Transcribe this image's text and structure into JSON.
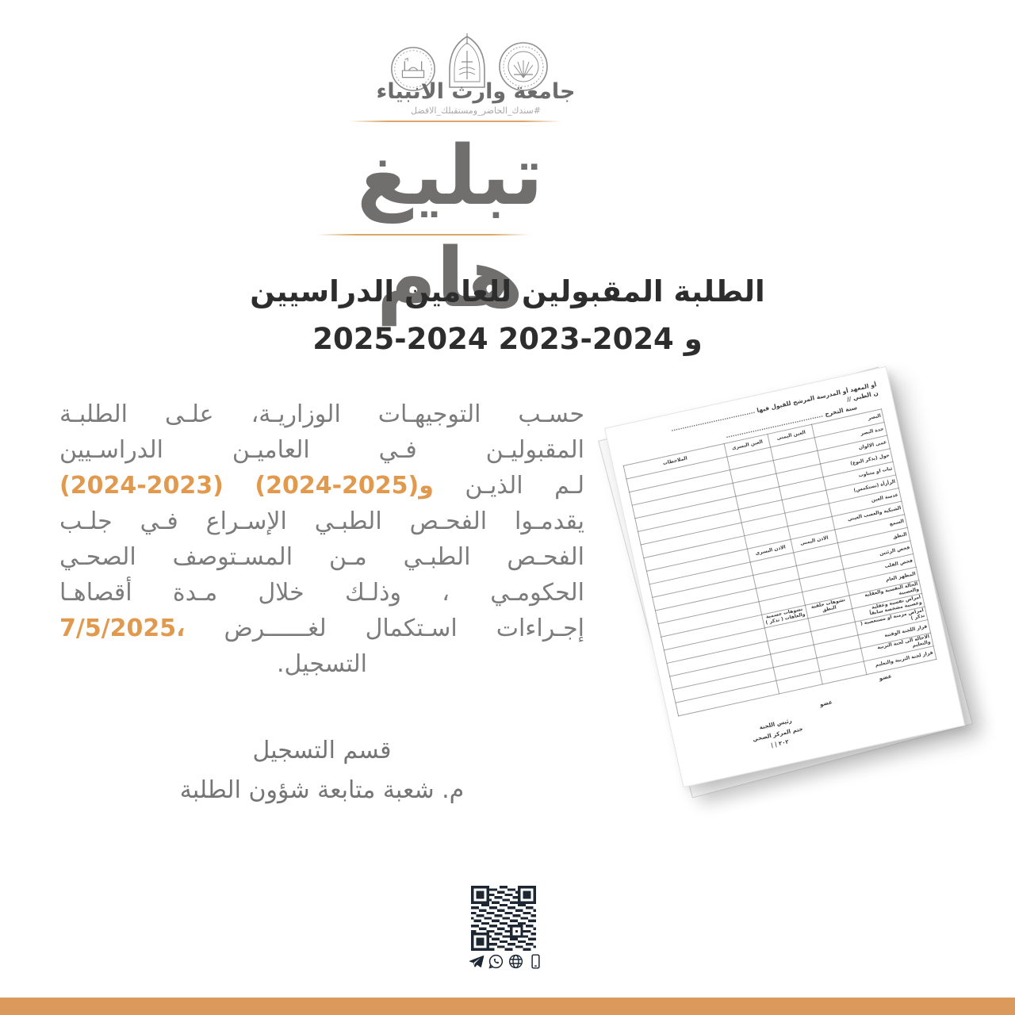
{
  "colors": {
    "accent_orange": "#E1994E",
    "footer_bar_orange": "#DB995C",
    "title_gray": "#706F6E",
    "subtitle_dark": "#2D2D2D",
    "body_gray": "#7C7C7C",
    "icon_navy": "#1C2733",
    "logo_gray": "#8E8E8E",
    "hairline_orange": "#DCA668"
  },
  "header": {
    "logos": [
      "shrine-emblem",
      "university-emblem",
      "ministry-seal"
    ],
    "university_name": "جامعة وارث الانبياء",
    "tagline": "#سندك_الحاضر_ومستقبلك_الافضل"
  },
  "notice": {
    "title": "تبليغ هام",
    "subtitle_line1": "الطلبة المقبولين للعامين الدراسيين",
    "subtitle_line2": "2025-2024 و 2024-2023",
    "body_lines": [
      {
        "type": "rtl",
        "segments": [
          {
            "text": "حسـب التوجيهـات الوزاريـة، علـى الطلبـة",
            "color": "body"
          }
        ]
      },
      {
        "type": "rtl",
        "segments": [
          {
            "text": "المقبوليـن فـي العاميـن الدراسـيين",
            "color": "body"
          }
        ]
      },
      {
        "type": "ltrflex",
        "segments": [
          {
            "text": "(2024-2023)",
            "color": "accent"
          },
          {
            "text": "و(2025-2024)",
            "color": "accent"
          },
          {
            "text": "الذيـن",
            "color": "body"
          },
          {
            "text": "لـم",
            "color": "body"
          }
        ]
      },
      {
        "type": "rtl",
        "segments": [
          {
            "text": "يقدمـوا الفحـص الطبـي الإسـراع فـي جلـب",
            "color": "body"
          }
        ]
      },
      {
        "type": "rtl",
        "segments": [
          {
            "text": "الفحـص الطبـي مـن المسـتوصف الصحـي",
            "color": "body"
          }
        ]
      },
      {
        "type": "rtl",
        "segments": [
          {
            "text": "الحكومـي ، وذلـك خلال مـدة أقصاهـا",
            "color": "body"
          }
        ]
      },
      {
        "type": "ltrflex",
        "segments": [
          {
            "text": "7/5/2025،",
            "color": "accent"
          },
          {
            "text": "لغــــــرض",
            "color": "body"
          },
          {
            "text": "اسـتكمال",
            "color": "body"
          },
          {
            "text": "إجـراءات",
            "color": "body"
          }
        ]
      },
      {
        "type": "center",
        "segments": [
          {
            "text": "التسجيل.",
            "color": "body"
          }
        ]
      }
    ],
    "signature_line1": "قسم التسجيل",
    "signature_line2": "م. شعبة متابعة شؤون الطلبة"
  },
  "form": {
    "header_line1": "أو المعهد أو المدرسة المرشح للقبول فيها",
    "header_line1_dots": "......................................",
    "header_line2": "ن الطبي //",
    "header_line3": "سنة التخرج",
    "header_line3_dots": "............................................",
    "table_rows": [
      {
        "label": "البصر",
        "head": true,
        "cells": [
          "العين اليمنى",
          "العين اليسرى",
          "الملاحظات"
        ]
      },
      {
        "label": "حدة البصر",
        "cells": [
          "",
          "",
          ""
        ]
      },
      {
        "label": "عمى الالوان",
        "cells": [
          "",
          "",
          ""
        ]
      },
      {
        "label": "حول (يذكر النوع)",
        "cells": [
          "",
          "",
          ""
        ]
      },
      {
        "label": "ثبات او متناوب",
        "cells": [
          "",
          "",
          ""
        ]
      },
      {
        "label": "الرأرأة (نستكمس)",
        "cells": [
          "",
          "",
          ""
        ]
      },
      {
        "label": "عدسة العين",
        "cells": [
          "",
          "",
          ""
        ]
      },
      {
        "label": "الشبكية والعصب العيني",
        "cells": [
          "",
          "",
          ""
        ]
      },
      {
        "label": "السمع",
        "cells": [
          "الاذن اليمنى",
          "الاذن اليسرى",
          ""
        ]
      },
      {
        "label": "النطق",
        "cells": [
          "",
          "",
          ""
        ]
      },
      {
        "label": "فحص الرئتين",
        "cells": [
          "",
          "",
          ""
        ]
      },
      {
        "label": "فحص القلب",
        "cells": [
          "",
          "",
          ""
        ]
      },
      {
        "label": "المظهر العام",
        "cells": [
          "",
          "",
          ""
        ]
      },
      {
        "label": "الحالة النفسية والعقلية والعصبية",
        "cells": [
          "تشوهات خلقية   النطق",
          "تشوهات جسمية والعاهات ( تذكر )",
          ""
        ]
      },
      {
        "label": "امراض نفسية وعقلية وعصبية مشخصة سابقاً",
        "cells": [
          "",
          "",
          ""
        ]
      },
      {
        "label": "امراض مزمنة او مستعصية ( تذكر )",
        "cells": [
          "",
          "",
          ""
        ]
      },
      {
        "label": "قرار اللجنة الوقتية",
        "cells": [
          "",
          "",
          ""
        ]
      },
      {
        "label": "الاحالة الى لجنة التربية والتعليم",
        "cells": [
          "",
          "",
          ""
        ]
      },
      {
        "label": "قرار لجنة التربية والتعليم",
        "cells": [
          "",
          "",
          ""
        ]
      }
    ],
    "member1": "عضو",
    "member2": "عضو",
    "chair": "رئيس اللجنة",
    "stamp": "ختم المركز الصحي",
    "year_partial": "٢٠٢   |   |"
  },
  "footer": {
    "icons": [
      "telegram-icon",
      "whatsapp-icon",
      "globe-icon",
      "phone-icon"
    ]
  }
}
